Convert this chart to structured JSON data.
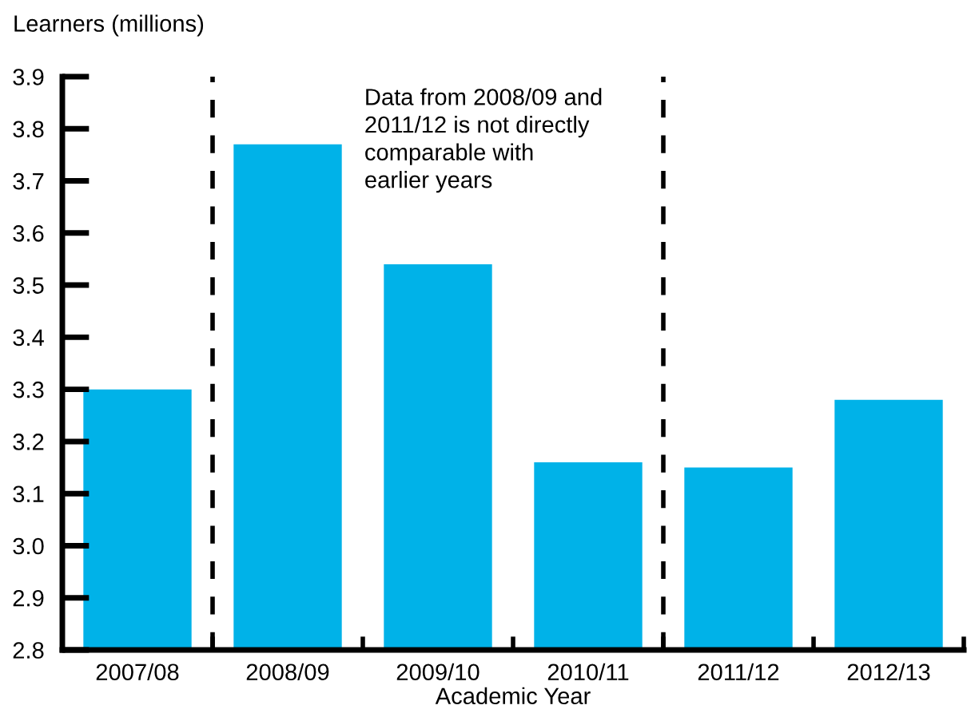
{
  "chart_data": {
    "type": "bar",
    "ylabel": "Learners (millions)",
    "xlabel": "Academic Year",
    "categories": [
      "2007/08",
      "2008/09",
      "2009/10",
      "2010/11",
      "2011/12",
      "2012/13"
    ],
    "values": [
      3.3,
      3.77,
      3.54,
      3.16,
      3.15,
      3.28
    ],
    "color": "#00b2e8",
    "ylim": [
      2.8,
      3.9
    ],
    "yticks": [
      {
        "value": 2.8,
        "label": "2.8"
      },
      {
        "value": 2.9,
        "label": "2.9"
      },
      {
        "value": 3.0,
        "label": "3.0"
      },
      {
        "value": 3.1,
        "label": "3.1"
      },
      {
        "value": 3.2,
        "label": "3.2"
      },
      {
        "value": 3.3,
        "label": "3.3"
      },
      {
        "value": 3.4,
        "label": "3.4"
      },
      {
        "value": 3.5,
        "label": "3.5"
      },
      {
        "value": 3.6,
        "label": "3.6"
      },
      {
        "value": 3.7,
        "label": "3.7"
      },
      {
        "value": 3.8,
        "label": "3.8"
      },
      {
        "value": 3.9,
        "label": "3.9"
      }
    ],
    "annotations": [
      "Data from 2008/09 and\n2011/12 is not directly\ncomparable with\nearlier years"
    ],
    "grid": false,
    "legend": false
  }
}
